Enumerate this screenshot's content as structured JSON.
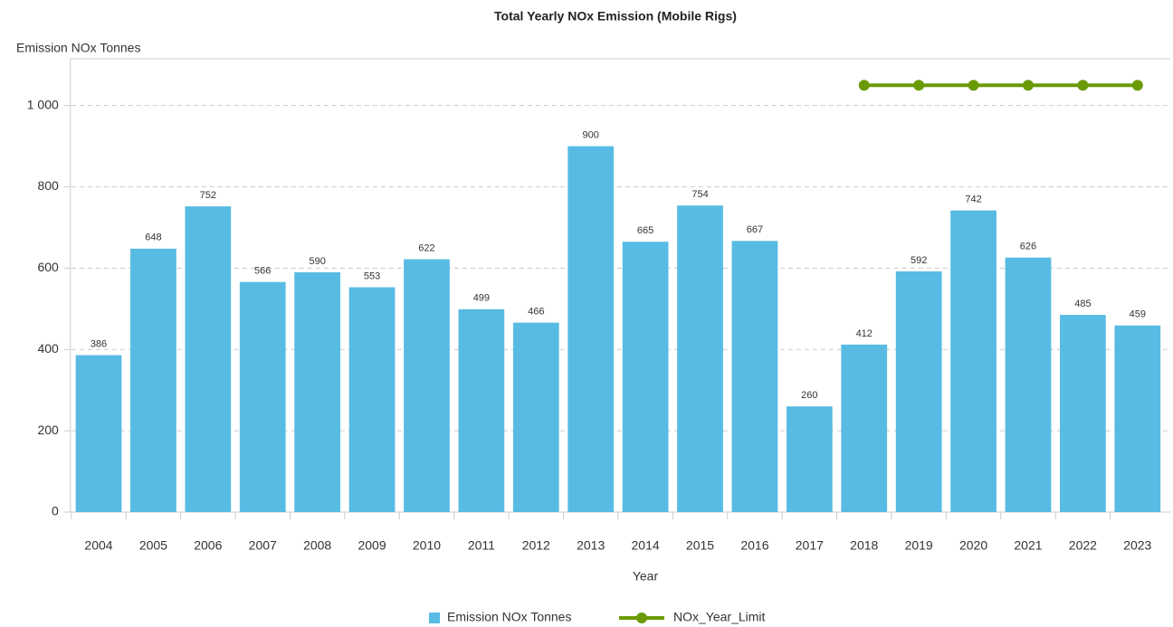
{
  "chart_data": {
    "type": "bar",
    "title": "Total Yearly NOx Emission (Mobile Rigs)",
    "y_label": "Emission NOx Tonnes",
    "x_label": "Year",
    "categories": [
      "2004",
      "2005",
      "2006",
      "2007",
      "2008",
      "2009",
      "2010",
      "2011",
      "2012",
      "2013",
      "2014",
      "2015",
      "2016",
      "2017",
      "2018",
      "2019",
      "2020",
      "2021",
      "2022",
      "2023"
    ],
    "series": [
      {
        "name": "Emission NOx Tonnes",
        "color": "#58bbe3",
        "kind": "bar",
        "values": [
          386,
          648,
          752,
          566,
          590,
          553,
          622,
          499,
          466,
          900,
          665,
          754,
          667,
          260,
          412,
          592,
          742,
          626,
          485,
          459
        ]
      },
      {
        "name": "NOx_Year_Limit",
        "color": "#6a9a06",
        "kind": "line",
        "values": [
          null,
          null,
          null,
          null,
          null,
          null,
          null,
          null,
          null,
          null,
          null,
          null,
          null,
          null,
          1050,
          1050,
          1050,
          1050,
          1050,
          1050
        ]
      }
    ],
    "ylim": [
      0,
      1115
    ],
    "yticks": [
      0,
      200,
      400,
      600,
      800,
      {
        "value": 1000,
        "label": "1 000"
      }
    ],
    "grid": true
  }
}
